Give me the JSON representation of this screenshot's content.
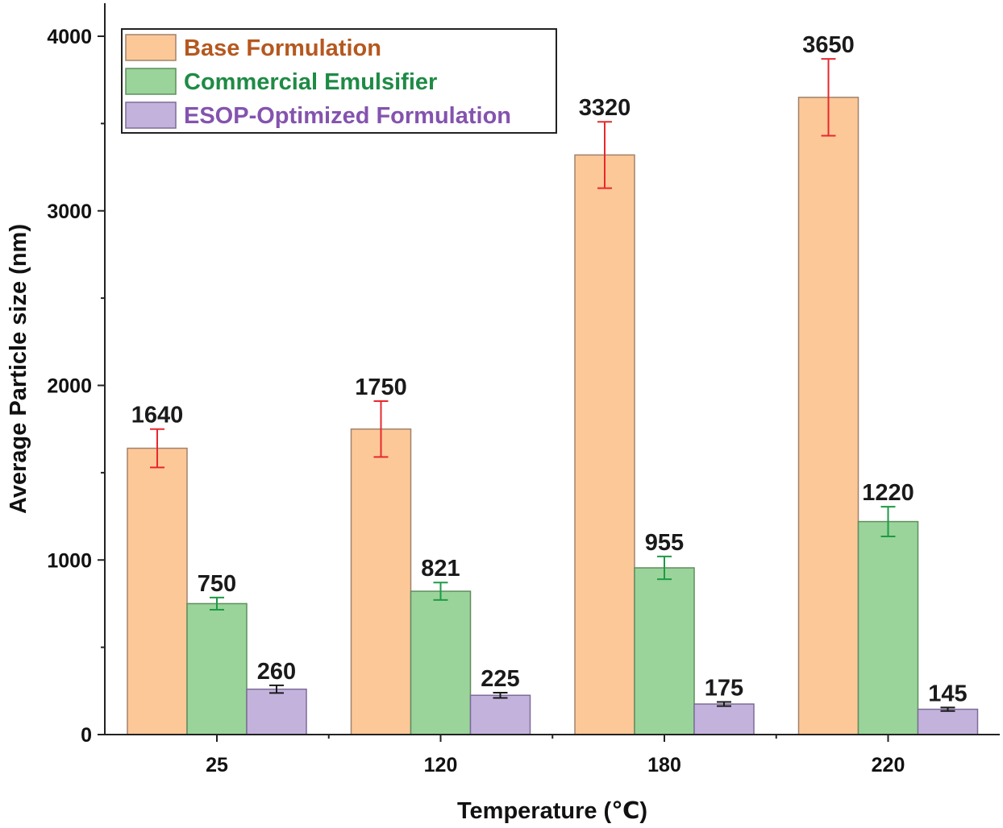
{
  "chart_data": {
    "type": "bar",
    "title": "",
    "xlabel": "Temperature (℃)",
    "ylabel": "Average Particle size (nm)",
    "ylim": [
      0,
      4000
    ],
    "y_major_ticks": [
      0,
      1000,
      2000,
      3000,
      4000
    ],
    "y_minor_step": 500,
    "categories": [
      "25",
      "120",
      "180",
      "220"
    ],
    "legend_position": "top-left",
    "grid": false,
    "series": [
      {
        "name": "Base Formulation",
        "color": "#FDC898",
        "edge_color": "#A0826A",
        "errorbar_color": "#E8282E",
        "label_color": "#B5581E",
        "values": [
          1640,
          1750,
          3320,
          3650
        ],
        "errors": [
          110,
          160,
          190,
          220
        ]
      },
      {
        "name": "Commercial Emulsifier",
        "color": "#9AD49A",
        "edge_color": "#5E8E5E",
        "errorbar_color": "#1E9A46",
        "label_color": "#1E8B45",
        "values": [
          750,
          821,
          955,
          1220
        ],
        "errors": [
          35,
          50,
          65,
          85
        ]
      },
      {
        "name": "ESOP-Optimized Formulation",
        "color": "#C3B3DC",
        "edge_color": "#7C6C98",
        "errorbar_color": "#1A1A1A",
        "label_color": "#8453AE",
        "values": [
          260,
          225,
          175,
          145
        ],
        "errors": [
          22,
          15,
          12,
          10
        ]
      }
    ]
  }
}
